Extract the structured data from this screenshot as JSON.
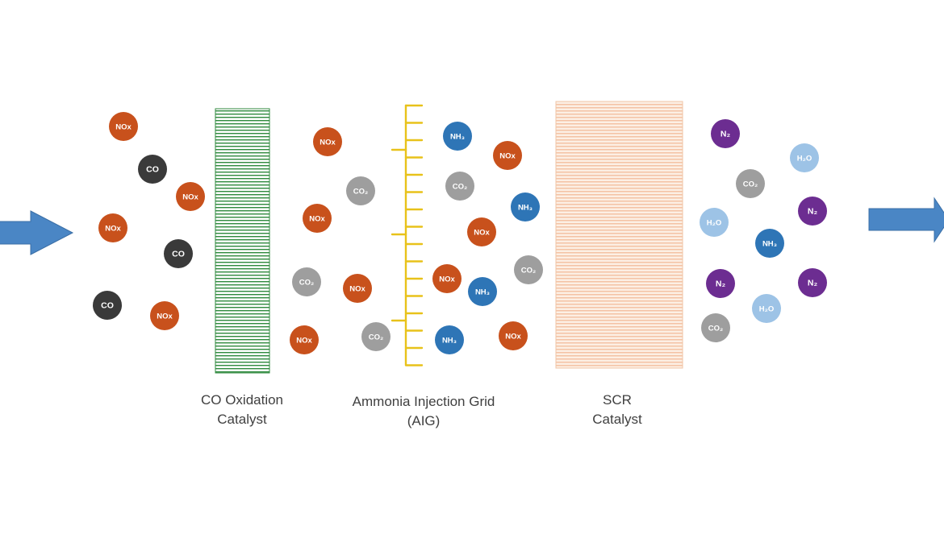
{
  "colors": {
    "background": "#ffffff",
    "arrow": "#4a86c5",
    "oxidation_catalyst_lines": "#2f8a3e",
    "injection_grid": "#e8c21a",
    "scr_catalyst_fill": "#fcefe4",
    "scr_catalyst_lines": "#f3b894",
    "NOx": "#c8511c",
    "CO": "#3a3a3a",
    "CO2": "#9e9e9e",
    "NH3": "#2e75b6",
    "N2": "#6c2d91",
    "H2O": "#9dc3e6",
    "caption_text": "#404040"
  },
  "arrows": [
    {
      "name": "inlet-arrow-icon"
    },
    {
      "name": "outlet-arrow-icon"
    }
  ],
  "captions": [
    {
      "name": "co-oxidation-catalyst-caption",
      "lines": [
        "CO Oxidation",
        "Catalyst"
      ]
    },
    {
      "name": "ammonia-injection-grid-caption",
      "lines": [
        "Ammonia Injection Grid",
        "(AIG)"
      ]
    },
    {
      "name": "scr-catalyst-caption",
      "lines": [
        "SCR",
        "Catalyst"
      ]
    }
  ],
  "molecules": [
    {
      "type": "NOx",
      "label": "NOx"
    },
    {
      "type": "CO",
      "label": "CO"
    },
    {
      "type": "NOx",
      "label": "NOx"
    },
    {
      "type": "NOx",
      "label": "NOx"
    },
    {
      "type": "CO",
      "label": "CO"
    },
    {
      "type": "CO",
      "label": "CO"
    },
    {
      "type": "NOx",
      "label": "NOx"
    },
    {
      "type": "NOx",
      "label": "NOx"
    },
    {
      "type": "CO2",
      "label": "CO₂"
    },
    {
      "type": "NOx",
      "label": "NOx"
    },
    {
      "type": "CO2",
      "label": "CO₂"
    },
    {
      "type": "NOx",
      "label": "NOx"
    },
    {
      "type": "NOx",
      "label": "NOx"
    },
    {
      "type": "CO2",
      "label": "CO₂"
    },
    {
      "type": "NH3",
      "label": "NH₃"
    },
    {
      "type": "NOx",
      "label": "NOx"
    },
    {
      "type": "CO2",
      "label": "CO₂"
    },
    {
      "type": "NH3",
      "label": "NH₃"
    },
    {
      "type": "NOx",
      "label": "NOx"
    },
    {
      "type": "CO2",
      "label": "CO₂"
    },
    {
      "type": "NOx",
      "label": "NOx"
    },
    {
      "type": "NH3",
      "label": "NH₃"
    },
    {
      "type": "NH3",
      "label": "NH₃"
    },
    {
      "type": "NOx",
      "label": "NOx"
    },
    {
      "type": "N2",
      "label": "N₂"
    },
    {
      "type": "H2O",
      "label": "H₂O"
    },
    {
      "type": "CO2",
      "label": "CO₂"
    },
    {
      "type": "N2",
      "label": "N₂"
    },
    {
      "type": "H2O",
      "label": "H₂O"
    },
    {
      "type": "NH3",
      "label": "NH₃"
    },
    {
      "type": "N2",
      "label": "N₂"
    },
    {
      "type": "N2",
      "label": "N₂"
    },
    {
      "type": "H2O",
      "label": "H₂O"
    },
    {
      "type": "CO2",
      "label": "CO₂"
    }
  ]
}
